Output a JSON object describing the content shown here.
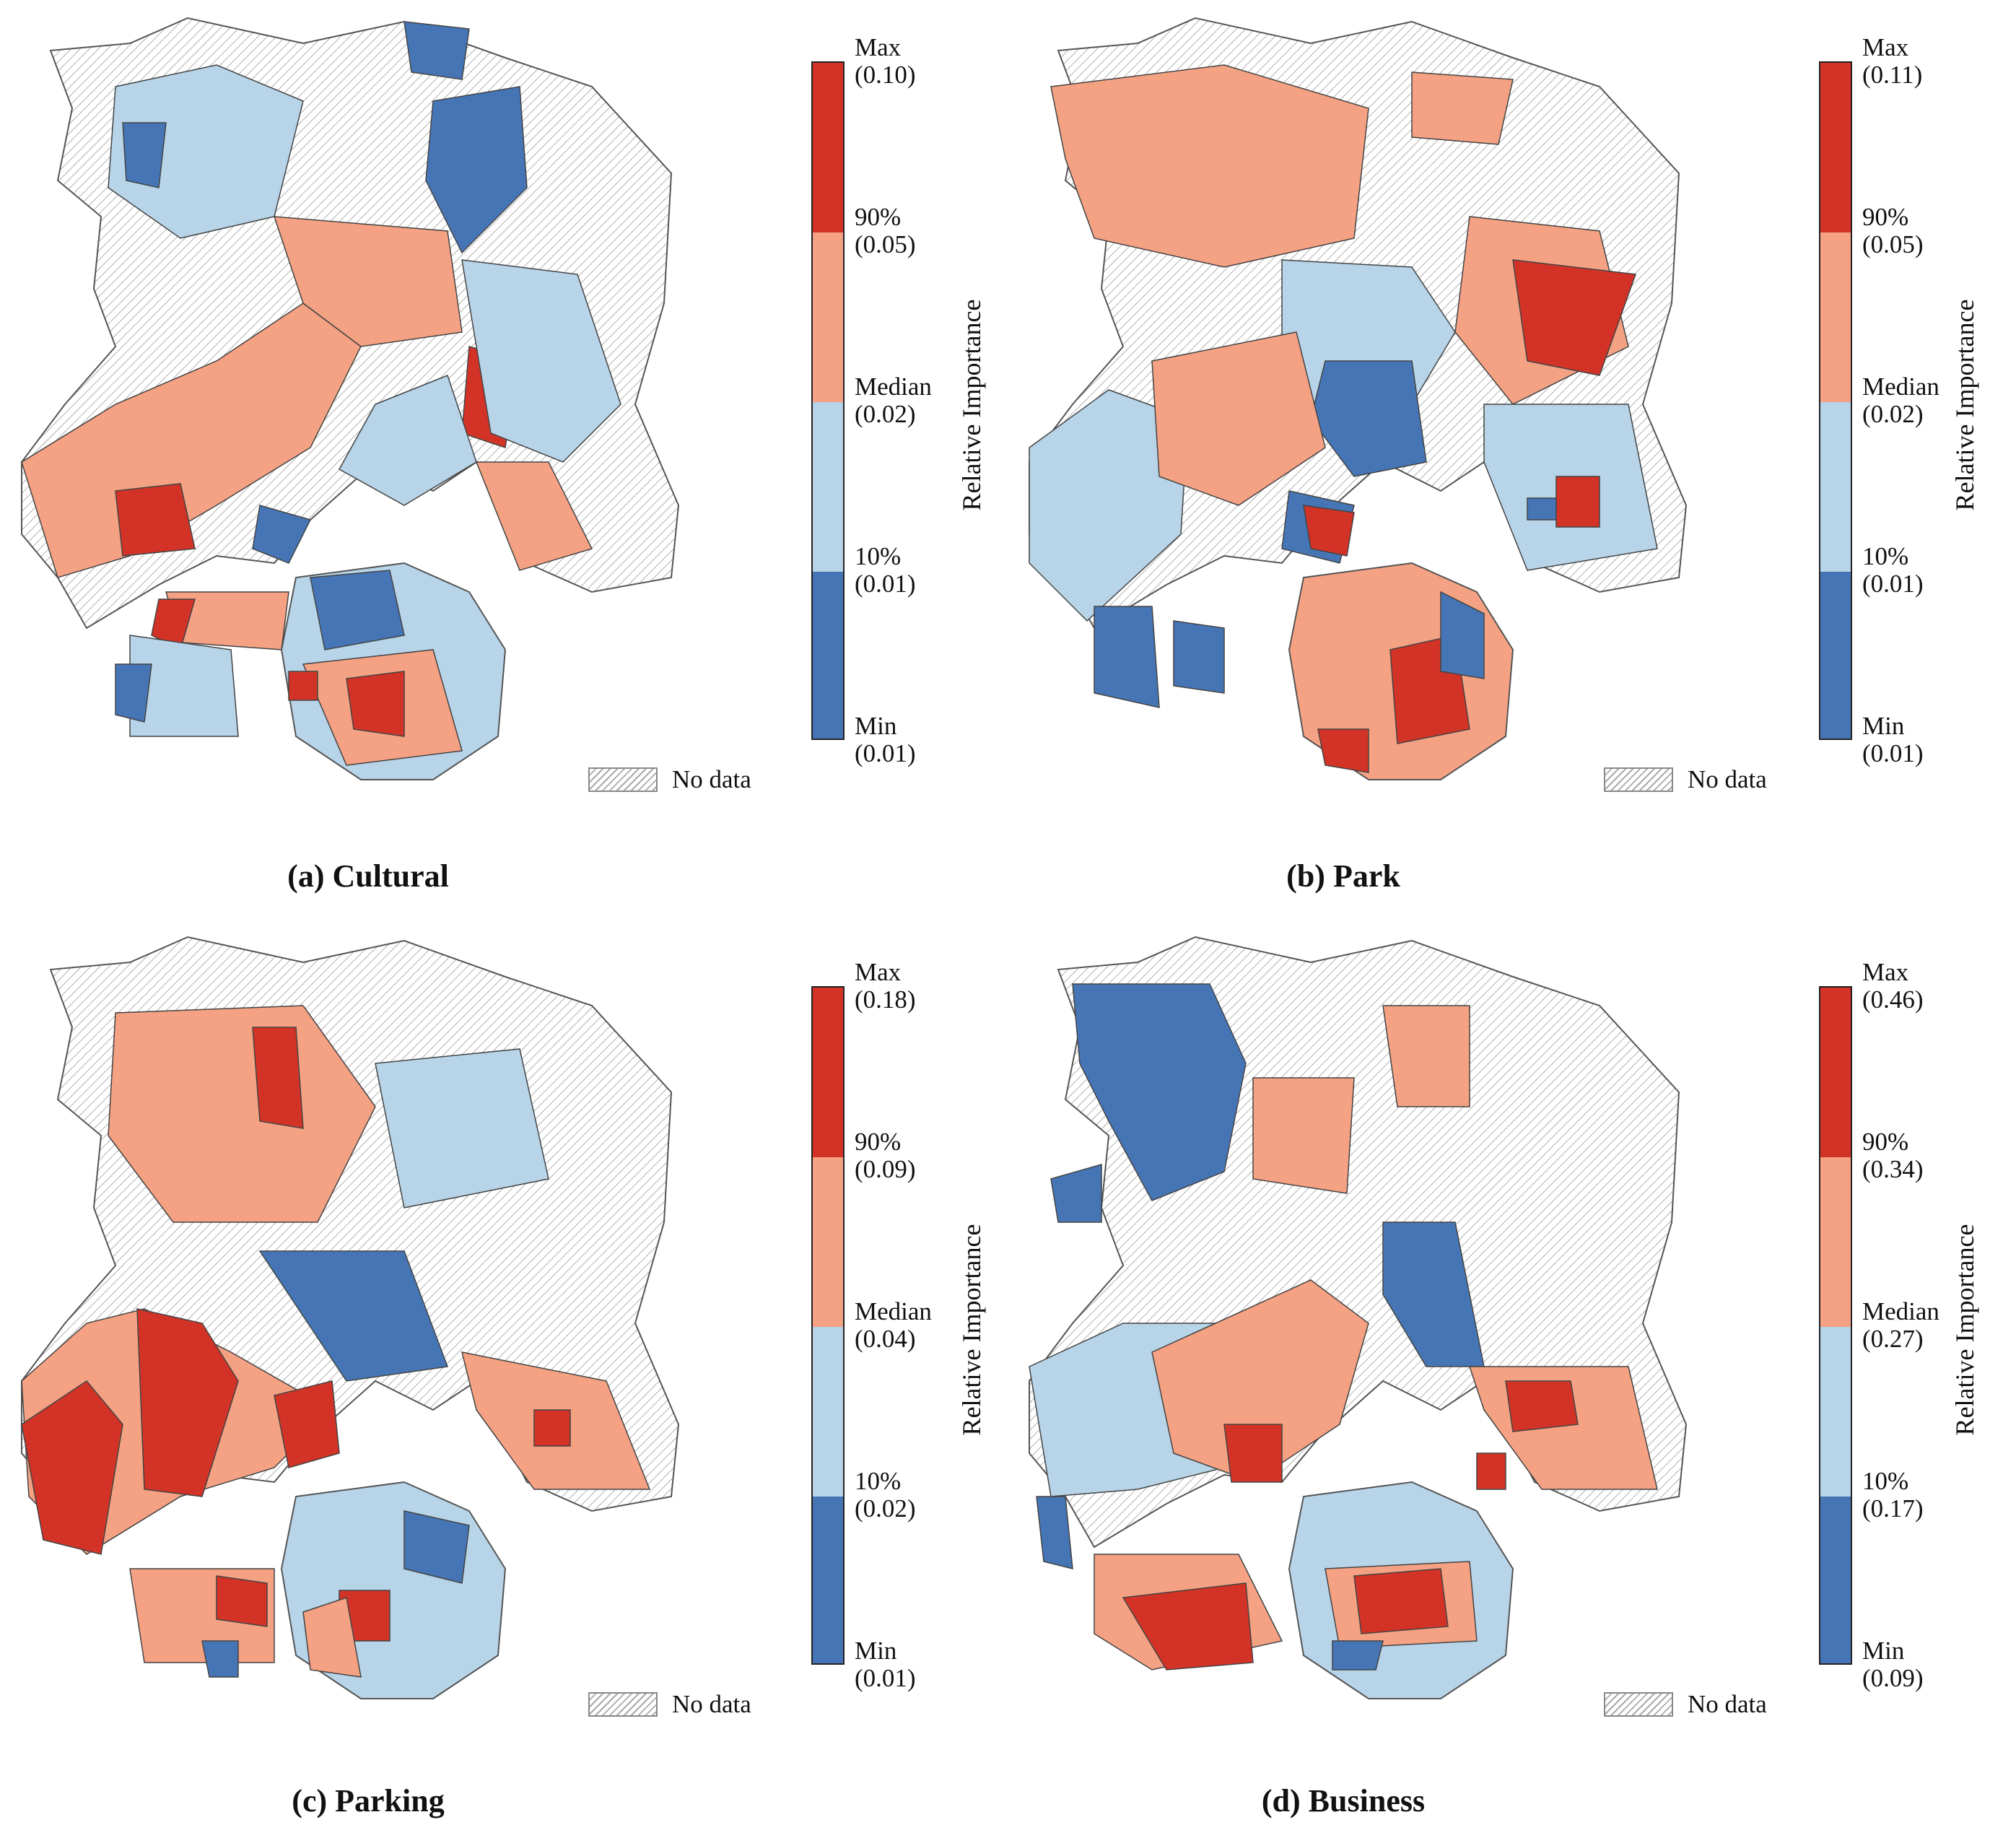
{
  "colors": {
    "max_band": "#d33327",
    "upper_band": "#f4a283",
    "lower_band": "#b7d4e8",
    "min_band": "#4675b6",
    "no_data_hatch": "#aaaaaa",
    "boundary": "#555555"
  },
  "legend_common": {
    "axis_title": "Relative Importance",
    "no_data_label": "No data"
  },
  "panels": [
    {
      "caption": "(a) Cultural",
      "ticks": [
        {
          "name": "Max",
          "value": "(0.10)"
        },
        {
          "name": "90%",
          "value": "(0.05)"
        },
        {
          "name": "Median",
          "value": "(0.02)"
        },
        {
          "name": "10%",
          "value": "(0.01)"
        },
        {
          "name": "Min",
          "value": "(0.01)"
        }
      ]
    },
    {
      "caption": "(b) Park",
      "ticks": [
        {
          "name": "Max",
          "value": "(0.11)"
        },
        {
          "name": "90%",
          "value": "(0.05)"
        },
        {
          "name": "Median",
          "value": "(0.02)"
        },
        {
          "name": "10%",
          "value": "(0.01)"
        },
        {
          "name": "Min",
          "value": "(0.01)"
        }
      ]
    },
    {
      "caption": "(c) Parking",
      "ticks": [
        {
          "name": "Max",
          "value": "(0.18)"
        },
        {
          "name": "90%",
          "value": "(0.09)"
        },
        {
          "name": "Median",
          "value": "(0.04)"
        },
        {
          "name": "10%",
          "value": "(0.02)"
        },
        {
          "name": "Min",
          "value": "(0.01)"
        }
      ]
    },
    {
      "caption": "(d) Business",
      "ticks": [
        {
          "name": "Max",
          "value": "(0.46)"
        },
        {
          "name": "90%",
          "value": "(0.34)"
        },
        {
          "name": "Median",
          "value": "(0.27)"
        },
        {
          "name": "10%",
          "value": "(0.17)"
        },
        {
          "name": "Min",
          "value": "(0.09)"
        }
      ]
    }
  ]
}
